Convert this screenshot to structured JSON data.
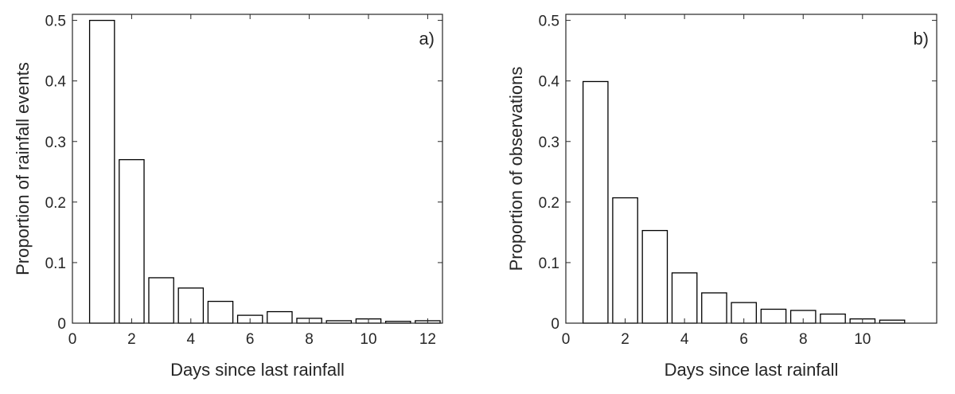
{
  "chart_data": [
    {
      "type": "bar",
      "panel_label": "a)",
      "xlabel": "Days since last rainfall",
      "ylabel": "Proportion of rainfall events",
      "xlim": [
        0,
        12.5
      ],
      "ylim": [
        0,
        0.51
      ],
      "x_ticks": [
        "0",
        "2",
        "4",
        "6",
        "8",
        "10",
        "12"
      ],
      "y_ticks": [
        "0",
        "0.1",
        "0.2",
        "0.3",
        "0.4",
        "0.5"
      ],
      "x": [
        1,
        2,
        3,
        4,
        5,
        6,
        7,
        8,
        9,
        10,
        11,
        12
      ],
      "values": [
        0.5,
        0.27,
        0.075,
        0.058,
        0.036,
        0.013,
        0.019,
        0.008,
        0.004,
        0.007,
        0.003,
        0.004
      ],
      "grid": false,
      "bar_fill": "#ffffff",
      "bar_stroke": "#000000"
    },
    {
      "type": "bar",
      "panel_label": "b)",
      "xlabel": "Days since last rainfall",
      "ylabel": "Proportion of observations",
      "xlim": [
        0,
        12.5
      ],
      "ylim": [
        0,
        0.51
      ],
      "x_ticks": [
        "0",
        "2",
        "4",
        "6",
        "8",
        "10"
      ],
      "y_ticks": [
        "0",
        "0.1",
        "0.2",
        "0.3",
        "0.4",
        "0.5"
      ],
      "x": [
        1,
        2,
        3,
        4,
        5,
        6,
        7,
        8,
        9,
        10,
        11
      ],
      "values": [
        0.399,
        0.207,
        0.153,
        0.083,
        0.05,
        0.034,
        0.023,
        0.021,
        0.015,
        0.007,
        0.005
      ],
      "grid": false,
      "bar_fill": "#ffffff",
      "bar_stroke": "#000000"
    }
  ]
}
